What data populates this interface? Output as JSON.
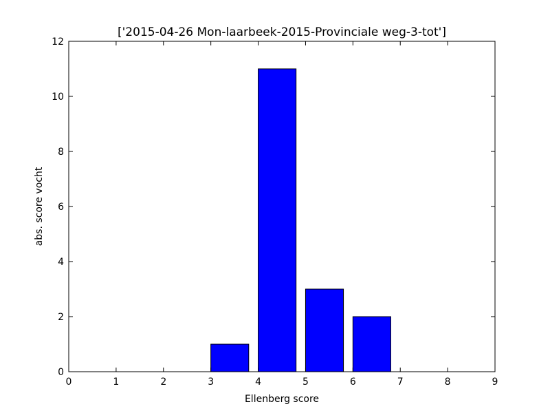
{
  "chart_data": {
    "type": "bar",
    "title": "['2015-04-26 Mon-laarbeek-2015-Provinciale weg-3-tot']",
    "xlabel": "Ellenberg score",
    "ylabel": "abs. score vocht",
    "x": [
      1,
      2,
      3,
      4,
      5,
      6,
      7,
      8
    ],
    "values": [
      0,
      0,
      0,
      1,
      11,
      3,
      2,
      0
    ],
    "bar_width": 0.8,
    "xlim": [
      0,
      9
    ],
    "ylim": [
      0,
      12
    ],
    "xticks": [
      "0",
      "1",
      "2",
      "3",
      "4",
      "5",
      "6",
      "7",
      "8",
      "9"
    ],
    "yticks": [
      "0",
      "2",
      "4",
      "6",
      "8",
      "10",
      "12"
    ],
    "grid": false,
    "bar_color": "#0000ff",
    "edge_color": "#000000"
  }
}
